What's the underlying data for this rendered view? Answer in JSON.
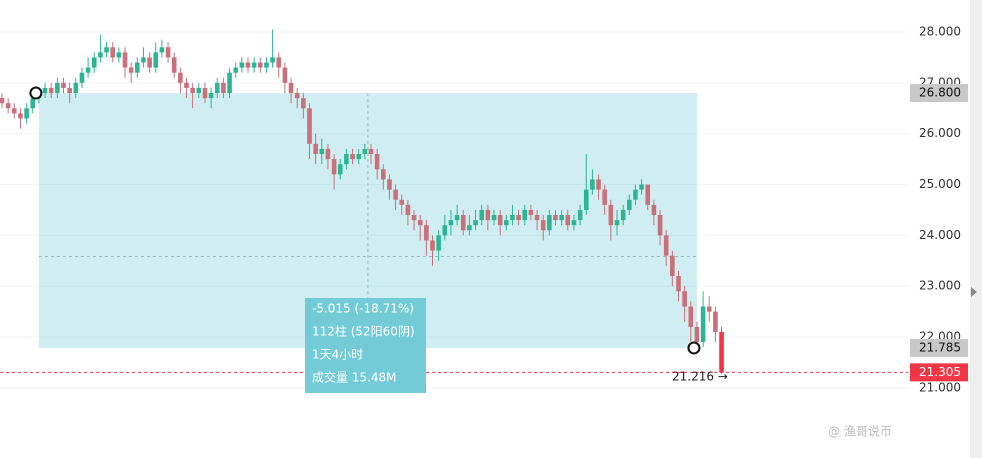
{
  "chart_data": {
    "type": "candlestick",
    "ylim": [
      19.62,
      28.63
    ],
    "yticks": [
      {
        "value": 21,
        "label": "21.000"
      },
      {
        "value": 22,
        "label": "22.000"
      },
      {
        "value": 23,
        "label": "23.000"
      },
      {
        "value": 24,
        "label": "24.000"
      },
      {
        "value": 25,
        "label": "25.000"
      },
      {
        "value": 26,
        "label": "26.000"
      },
      {
        "value": 27,
        "label": "27.000"
      },
      {
        "value": 28,
        "label": "28.000"
      }
    ],
    "grid": true,
    "up_color": "#2bb594",
    "down_color": "#c9707a",
    "last_color": "#f23645",
    "open": [
      26.7,
      26.6,
      26.5,
      26.4,
      26.3,
      26.5,
      26.7,
      26.8,
      26.9,
      26.8,
      27.0,
      26.9,
      26.8,
      27.0,
      27.2,
      27.3,
      27.5,
      27.6,
      27.7,
      27.5,
      27.6,
      27.3,
      27.2,
      27.4,
      27.5,
      27.3,
      27.6,
      27.7,
      27.5,
      27.2,
      27.0,
      26.9,
      26.8,
      26.9,
      26.7,
      26.8,
      27.0,
      26.8,
      27.2,
      27.3,
      27.4,
      27.3,
      27.4,
      27.3,
      27.4,
      27.5,
      27.3,
      27.0,
      26.8,
      26.7,
      26.5,
      25.8,
      25.6,
      25.7,
      25.5,
      25.2,
      25.4,
      25.6,
      25.5,
      25.6,
      25.7,
      25.6,
      25.3,
      25.1,
      24.9,
      24.7,
      24.6,
      24.4,
      24.3,
      24.2,
      23.9,
      23.7,
      24.0,
      24.2,
      24.3,
      24.4,
      24.1,
      24.2,
      24.3,
      24.5,
      24.3,
      24.4,
      24.2,
      24.3,
      24.4,
      24.3,
      24.5,
      24.4,
      24.3,
      24.1,
      24.4,
      24.3,
      24.4,
      24.2,
      24.3,
      24.5,
      24.9,
      25.1,
      24.9,
      24.6,
      24.2,
      24.3,
      24.5,
      24.7,
      24.9,
      25.0,
      24.6,
      24.4,
      24.0,
      23.6,
      23.2,
      22.9,
      22.6,
      22.2,
      21.9,
      22.6,
      22.5,
      22.1
    ],
    "high": [
      26.8,
      26.7,
      26.6,
      26.5,
      26.6,
      26.8,
      26.9,
      27.0,
      27.0,
      27.1,
      27.1,
      27.0,
      27.1,
      27.3,
      27.5,
      27.6,
      27.95,
      27.8,
      27.8,
      27.7,
      27.7,
      27.4,
      27.5,
      27.7,
      27.6,
      27.8,
      27.85,
      27.8,
      27.6,
      27.3,
      27.1,
      27.0,
      27.0,
      27.0,
      26.9,
      27.1,
      27.1,
      27.3,
      27.4,
      27.5,
      27.5,
      27.5,
      27.5,
      27.5,
      28.05,
      27.6,
      27.4,
      27.1,
      26.9,
      26.8,
      26.6,
      26.0,
      25.9,
      25.8,
      25.6,
      25.5,
      25.7,
      25.7,
      25.7,
      25.8,
      25.8,
      25.7,
      25.4,
      25.2,
      25.0,
      24.8,
      24.7,
      24.5,
      24.4,
      24.3,
      24.0,
      24.1,
      24.4,
      24.5,
      24.6,
      24.5,
      24.4,
      24.5,
      24.6,
      24.6,
      24.5,
      24.5,
      24.4,
      24.6,
      24.5,
      24.6,
      24.6,
      24.5,
      24.4,
      24.5,
      24.5,
      24.5,
      24.5,
      24.4,
      24.6,
      25.6,
      25.3,
      25.2,
      25.0,
      24.7,
      24.5,
      24.6,
      24.8,
      25.0,
      25.1,
      25.0,
      24.7,
      24.5,
      24.1,
      23.7,
      23.3,
      23.0,
      22.7,
      22.3,
      22.9,
      22.8,
      22.6,
      22.2
    ],
    "low": [
      26.5,
      26.4,
      26.3,
      26.1,
      26.2,
      26.4,
      26.6,
      26.7,
      26.7,
      26.7,
      26.8,
      26.6,
      26.7,
      26.9,
      27.1,
      27.2,
      27.4,
      27.5,
      27.4,
      27.4,
      27.1,
      27.0,
      27.1,
      27.3,
      27.2,
      27.2,
      27.5,
      27.4,
      27.1,
      26.8,
      26.7,
      26.5,
      26.7,
      26.6,
      26.5,
      26.7,
      26.7,
      26.7,
      27.1,
      27.2,
      27.2,
      27.2,
      27.2,
      27.2,
      27.3,
      27.1,
      26.8,
      26.6,
      26.5,
      26.3,
      25.5,
      25.4,
      25.4,
      25.3,
      24.9,
      25.1,
      25.3,
      25.4,
      25.4,
      25.5,
      25.4,
      25.1,
      24.9,
      24.7,
      24.5,
      24.4,
      24.2,
      24.1,
      23.9,
      23.6,
      23.4,
      23.5,
      23.9,
      24.0,
      24.2,
      24.0,
      24.0,
      24.1,
      24.2,
      24.1,
      24.2,
      24.0,
      24.1,
      24.2,
      24.2,
      24.2,
      24.3,
      24.1,
      23.9,
      24.0,
      24.2,
      24.2,
      24.1,
      24.1,
      24.2,
      24.4,
      24.8,
      24.7,
      24.4,
      23.9,
      24.0,
      24.2,
      24.4,
      24.6,
      24.8,
      24.5,
      24.2,
      23.8,
      23.4,
      23.0,
      22.7,
      22.3,
      21.9,
      21.75,
      21.8,
      22.3,
      21.9,
      21.28
    ],
    "close": [
      26.6,
      26.5,
      26.4,
      26.3,
      26.5,
      26.7,
      26.8,
      26.9,
      26.8,
      27.0,
      26.9,
      26.8,
      27.0,
      27.2,
      27.3,
      27.5,
      27.6,
      27.7,
      27.5,
      27.6,
      27.3,
      27.2,
      27.4,
      27.5,
      27.3,
      27.6,
      27.7,
      27.5,
      27.2,
      27.0,
      26.9,
      26.8,
      26.9,
      26.7,
      26.8,
      27.0,
      26.8,
      27.2,
      27.3,
      27.4,
      27.3,
      27.4,
      27.3,
      27.4,
      27.5,
      27.3,
      27.0,
      26.8,
      26.7,
      26.5,
      25.8,
      25.6,
      25.7,
      25.5,
      25.2,
      25.4,
      25.6,
      25.5,
      25.6,
      25.7,
      25.6,
      25.3,
      25.1,
      24.9,
      24.7,
      24.6,
      24.4,
      24.3,
      24.2,
      23.9,
      23.7,
      24.0,
      24.2,
      24.3,
      24.4,
      24.1,
      24.2,
      24.3,
      24.5,
      24.3,
      24.4,
      24.2,
      24.3,
      24.4,
      24.3,
      24.5,
      24.4,
      24.3,
      24.1,
      24.4,
      24.3,
      24.4,
      24.2,
      24.3,
      24.5,
      24.9,
      25.1,
      24.9,
      24.6,
      24.2,
      24.3,
      24.5,
      24.7,
      24.9,
      25.0,
      24.6,
      24.4,
      24.0,
      23.6,
      23.2,
      22.9,
      22.6,
      22.2,
      21.9,
      22.6,
      22.5,
      22.1,
      21.305
    ],
    "measure": {
      "start": {
        "value": 26.8,
        "label": "26.800"
      },
      "end": {
        "value": 21.785,
        "label": "21.785"
      },
      "lines": [
        "-5.015 (-18.71%)",
        "112柱 (52阳60阴)",
        "1天4小时",
        "成交量 15.48M"
      ]
    },
    "last_price": {
      "value": 21.305,
      "label": "21.305"
    },
    "cursor_label": "21.216 →",
    "watermark": "@ 渔哥说币"
  }
}
